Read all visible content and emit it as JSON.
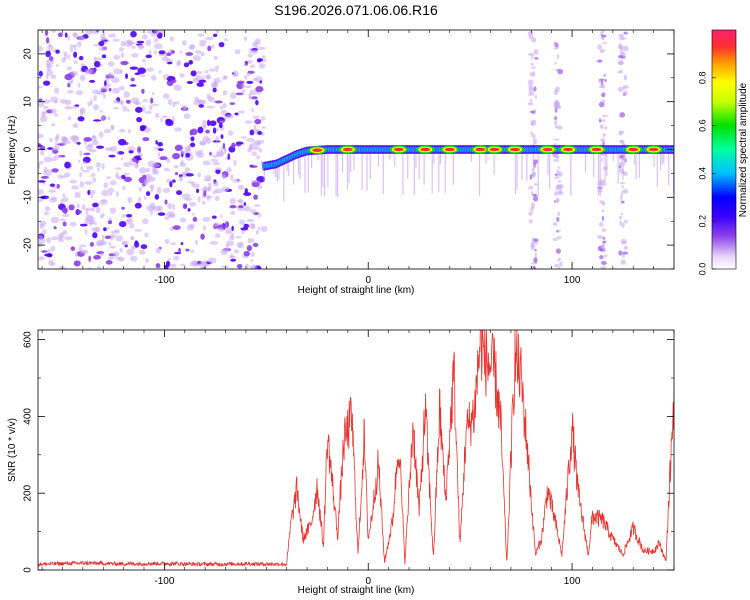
{
  "title": "S196.2026.071.06.06.R16",
  "colors": {
    "line": "#e8322e",
    "axis": "#000000",
    "scatter": "#8a3ee8",
    "palette": [
      "#ffffff",
      "#c9a7f4",
      "#8a3ee8",
      "#5000ff",
      "#0000ff",
      "#00c8ff",
      "#00ffb0",
      "#00e000",
      "#c8ff00",
      "#ffff00",
      "#ffa000",
      "#ff3030",
      "#ff2060"
    ]
  },
  "chart_data": [
    {
      "type": "heatmap",
      "xlabel": "Height of straight line (km)",
      "ylabel": "Frequency (Hz)",
      "xlim": [
        -162,
        150
      ],
      "ylim": [
        -25,
        25
      ],
      "xticks": [
        -100,
        0,
        100
      ],
      "yticks": [
        -20,
        -10,
        0,
        10,
        20
      ],
      "noise_region_x": [
        -162,
        -51
      ],
      "signal_start_x": -51,
      "ridge": [
        {
          "x": -51,
          "freq": -3.5
        },
        {
          "x": -45,
          "freq": -3
        },
        {
          "x": -40,
          "freq": -2
        },
        {
          "x": -35,
          "freq": -1
        },
        {
          "x": -30,
          "freq": -0.3
        },
        {
          "x": -20,
          "freq": 0
        },
        {
          "x": 0,
          "freq": 0
        },
        {
          "x": 150,
          "freq": 0
        }
      ],
      "hot_blobs_x": [
        -25,
        -10,
        15,
        28,
        40,
        55,
        62,
        72,
        88,
        98,
        112,
        130,
        140
      ],
      "artifact_columns_x": [
        81,
        93,
        115,
        125
      ],
      "colorbar": {
        "label": "Normalized spectral amplitude",
        "ticks": [
          0.0,
          0.2,
          0.4,
          0.6,
          0.8
        ]
      }
    },
    {
      "type": "line",
      "xlabel": "Height of straight line (km)",
      "ylabel": "SNR (10 * v/v)",
      "xlim": [
        -162,
        150
      ],
      "ylim": [
        0,
        625
      ],
      "xticks": [
        -100,
        0,
        100
      ],
      "yticks": [
        0,
        200,
        400,
        600
      ],
      "x": [
        -162,
        -140,
        -120,
        -100,
        -80,
        -60,
        -40,
        -38,
        -35,
        -32,
        -28,
        -25,
        -22,
        -20,
        -15,
        -12,
        -8,
        -5,
        -2,
        0,
        2,
        5,
        8,
        12,
        15,
        18,
        22,
        25,
        28,
        32,
        35,
        38,
        42,
        45,
        48,
        52,
        55,
        58,
        62,
        65,
        68,
        72,
        75,
        78,
        82,
        85,
        88,
        92,
        95,
        100,
        103,
        108,
        110,
        115,
        120,
        125,
        130,
        135,
        140,
        143,
        146,
        150
      ],
      "y": [
        15,
        18,
        16,
        17,
        15,
        16,
        15,
        120,
        210,
        80,
        120,
        220,
        60,
        350,
        90,
        330,
        400,
        40,
        350,
        80,
        150,
        280,
        20,
        130,
        340,
        20,
        380,
        150,
        420,
        30,
        420,
        180,
        520,
        60,
        360,
        410,
        600,
        540,
        520,
        380,
        10,
        560,
        500,
        320,
        40,
        80,
        210,
        120,
        40,
        370,
        200,
        40,
        140,
        130,
        80,
        40,
        110,
        50,
        50,
        70,
        20,
        460
      ]
    }
  ]
}
